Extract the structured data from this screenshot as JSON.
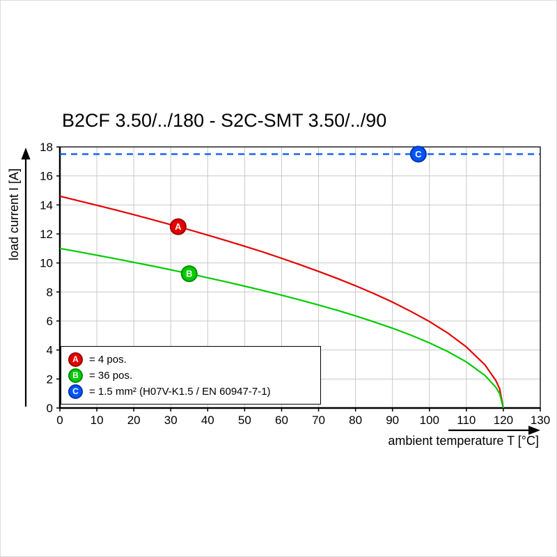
{
  "chart_data": {
    "type": "line",
    "title": "B2CF 3.50/../180 - S2C-SMT 3.50/../90",
    "xlabel": "ambient temperature T [°C]",
    "ylabel": "load current I [A]",
    "xlim": [
      0,
      130
    ],
    "ylim": [
      0,
      18
    ],
    "xticks": [
      0,
      10,
      20,
      30,
      40,
      50,
      60,
      70,
      80,
      90,
      100,
      110,
      120,
      130
    ],
    "yticks": [
      0,
      2,
      4,
      6,
      8,
      10,
      12,
      14,
      16,
      18
    ],
    "grid": true,
    "grid_color": "#c9c9c9",
    "legend_position": "lower-left",
    "series": [
      {
        "name": "A",
        "label": "4 pos.",
        "color": "#e60000",
        "style": "solid",
        "points": [
          [
            0,
            14.6
          ],
          [
            5,
            14.29
          ],
          [
            10,
            13.98
          ],
          [
            15,
            13.66
          ],
          [
            20,
            13.33
          ],
          [
            25,
            12.99
          ],
          [
            30,
            12.64
          ],
          [
            35,
            12.29
          ],
          [
            40,
            11.92
          ],
          [
            45,
            11.54
          ],
          [
            50,
            11.15
          ],
          [
            55,
            10.75
          ],
          [
            60,
            10.32
          ],
          [
            65,
            9.88
          ],
          [
            70,
            9.42
          ],
          [
            75,
            8.94
          ],
          [
            80,
            8.43
          ],
          [
            85,
            7.88
          ],
          [
            90,
            7.3
          ],
          [
            95,
            6.66
          ],
          [
            100,
            5.96
          ],
          [
            105,
            5.16
          ],
          [
            110,
            4.21
          ],
          [
            115,
            2.98
          ],
          [
            118,
            1.88
          ],
          [
            119,
            1.33
          ],
          [
            120,
            0
          ]
        ]
      },
      {
        "name": "B",
        "label": "36 pos.",
        "color": "#00cc00",
        "style": "solid",
        "points": [
          [
            0,
            11.0
          ],
          [
            5,
            10.77
          ],
          [
            10,
            10.53
          ],
          [
            15,
            10.29
          ],
          [
            20,
            10.04
          ],
          [
            25,
            9.79
          ],
          [
            30,
            9.53
          ],
          [
            35,
            9.26
          ],
          [
            40,
            8.98
          ],
          [
            45,
            8.7
          ],
          [
            50,
            8.4
          ],
          [
            55,
            8.1
          ],
          [
            60,
            7.78
          ],
          [
            65,
            7.45
          ],
          [
            70,
            7.1
          ],
          [
            75,
            6.74
          ],
          [
            80,
            6.35
          ],
          [
            85,
            5.94
          ],
          [
            90,
            5.5
          ],
          [
            95,
            5.02
          ],
          [
            100,
            4.49
          ],
          [
            105,
            3.89
          ],
          [
            110,
            3.18
          ],
          [
            115,
            2.25
          ],
          [
            118,
            1.42
          ],
          [
            119,
            1.0
          ],
          [
            120,
            0
          ]
        ]
      },
      {
        "name": "C",
        "label": "1.5 mm² (H07V-K1.5 / EN 60947-7-1)",
        "color": "#0055ff",
        "style": "dashed",
        "points": [
          [
            0,
            17.5
          ],
          [
            130,
            17.5
          ]
        ]
      }
    ],
    "markers": [
      {
        "label": "A",
        "x": 32,
        "y": 12.5,
        "color": "#e60000",
        "edge": "#990000"
      },
      {
        "label": "B",
        "x": 35,
        "y": 9.26,
        "color": "#00cc00",
        "edge": "#008a00"
      },
      {
        "label": "C",
        "x": 97,
        "y": 17.5,
        "color": "#0055ff",
        "edge": "#0033aa"
      }
    ]
  },
  "axes": {
    "x_label": "ambient temperature T [°C]",
    "y_label": "load current I [A]"
  },
  "legend": [
    {
      "key": "A",
      "text": "= 4 pos.",
      "color": "#e60000",
      "edge": "#990000"
    },
    {
      "key": "B",
      "text": "= 36 pos.",
      "color": "#00cc00",
      "edge": "#008a00"
    },
    {
      "key": "C",
      "text": "= 1.5 mm² (H07V-K1.5 / EN 60947-7-1)",
      "color": "#0055ff",
      "edge": "#0033aa"
    }
  ]
}
